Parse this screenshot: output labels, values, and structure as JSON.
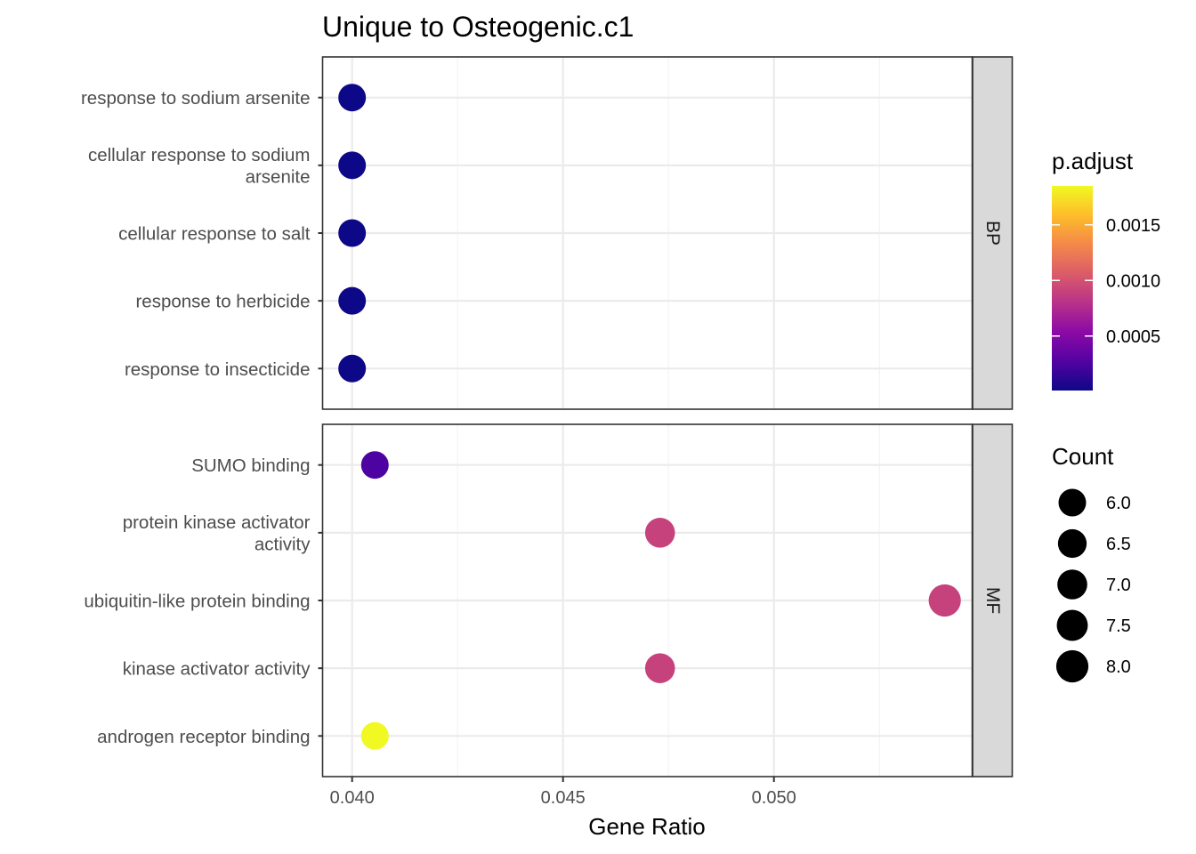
{
  "chart_data": {
    "type": "scatter",
    "title": "Unique to Osteogenic.c1",
    "xlabel": "Gene Ratio",
    "ylabel": "",
    "xlim": [
      0.0393,
      0.0547
    ],
    "x_ticks": [
      "0.040",
      "0.045",
      "0.050"
    ],
    "x_tick_values": [
      0.04,
      0.045,
      0.05
    ],
    "grid": true,
    "facets": [
      {
        "name": "BP",
        "points": [
          {
            "term": "response to sodium arsenite",
            "label_lines": [
              "response to sodium arsenite"
            ],
            "gene_ratio": 0.04,
            "p_adjust": 1e-05,
            "count": 6
          },
          {
            "term": "cellular response to sodium arsenite",
            "label_lines": [
              "cellular response to sodium",
              "arsenite"
            ],
            "gene_ratio": 0.04,
            "p_adjust": 1e-05,
            "count": 6
          },
          {
            "term": "cellular response to salt",
            "label_lines": [
              "cellular response to salt"
            ],
            "gene_ratio": 0.04,
            "p_adjust": 1e-05,
            "count": 6
          },
          {
            "term": "response to herbicide",
            "label_lines": [
              "response to herbicide"
            ],
            "gene_ratio": 0.04,
            "p_adjust": 1e-05,
            "count": 6
          },
          {
            "term": "response to insecticide",
            "label_lines": [
              "response to insecticide"
            ],
            "gene_ratio": 0.04,
            "p_adjust": 1e-05,
            "count": 6
          }
        ]
      },
      {
        "name": "MF",
        "points": [
          {
            "term": "SUMO binding",
            "label_lines": [
              "SUMO binding"
            ],
            "gene_ratio": 0.04054,
            "p_adjust": 0.00025,
            "count": 6
          },
          {
            "term": "protein kinase activator activity",
            "label_lines": [
              "protein kinase activator",
              "activity"
            ],
            "gene_ratio": 0.0473,
            "p_adjust": 0.0009,
            "count": 7
          },
          {
            "term": "ubiquitin-like protein binding",
            "label_lines": [
              "ubiquitin-like protein binding"
            ],
            "gene_ratio": 0.05405,
            "p_adjust": 0.0009,
            "count": 8
          },
          {
            "term": "kinase activator activity",
            "label_lines": [
              "kinase activator activity"
            ],
            "gene_ratio": 0.0473,
            "p_adjust": 0.0009,
            "count": 7
          },
          {
            "term": "androgen receptor binding",
            "label_lines": [
              "androgen receptor binding"
            ],
            "gene_ratio": 0.04054,
            "p_adjust": 0.00185,
            "count": 6
          }
        ]
      }
    ],
    "color_legend": {
      "title": "p.adjust",
      "range": [
        1e-05,
        0.00185
      ],
      "ticks": [
        {
          "label": "0.0015",
          "value": 0.0015
        },
        {
          "label": "0.0010",
          "value": 0.001
        },
        {
          "label": "0.0005",
          "value": 0.0005
        }
      ],
      "colormap": [
        "#0d0887",
        "#5302a3",
        "#8b0aa5",
        "#b83289",
        "#db5c68",
        "#f48849",
        "#febd2a",
        "#f0f921"
      ]
    },
    "size_legend": {
      "title": "Count",
      "entries": [
        {
          "label": "6.0",
          "value": 6.0
        },
        {
          "label": "6.5",
          "value": 6.5
        },
        {
          "label": "7.0",
          "value": 7.0
        },
        {
          "label": "7.5",
          "value": 7.5
        },
        {
          "label": "8.0",
          "value": 8.0
        }
      ],
      "colors": {
        "marker": "#000000"
      }
    },
    "colors": {
      "panel_border": "#333333",
      "grid_major": "#ebebeb",
      "grid_minor": "#f3f3f3",
      "strip_fill": "#d9d9d9"
    }
  }
}
